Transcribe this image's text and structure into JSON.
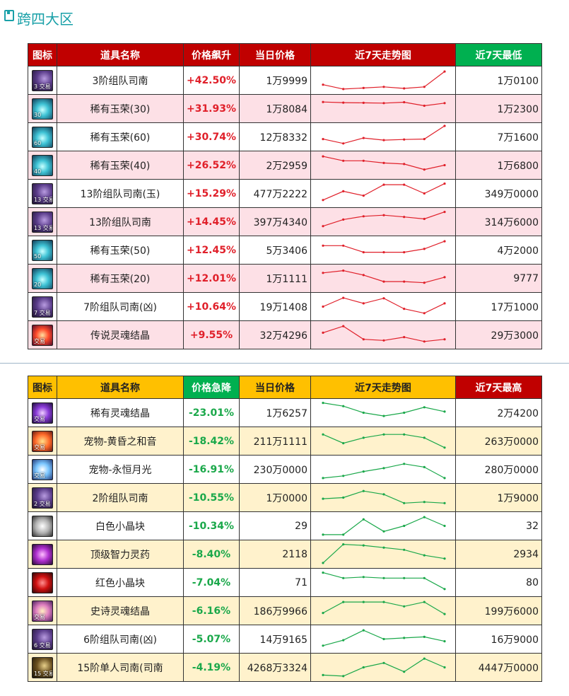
{
  "section": {
    "title": "跨四大区"
  },
  "rise_table": {
    "headers": [
      "图标",
      "道具名称",
      "价格飙升",
      "当日价格",
      "近7天走势图",
      "近7天最低"
    ],
    "trend_color": "#e0202a",
    "rows": [
      {
        "icon": "map-scroll-icon",
        "icon_class": "ic-map",
        "icon_tag": "3 交易",
        "name": "3阶组队司南",
        "change": "+42.50%",
        "price": "1万9999",
        "extreme": "1万0100",
        "trend": [
          3,
          1,
          1.5,
          2,
          1.3,
          2,
          9
        ]
      },
      {
        "icon": "jade-icon",
        "icon_class": "ic-jade",
        "icon_tag": "30",
        "name": "稀有玉荣(30)",
        "change": "+31.93%",
        "price": "1万8084",
        "extreme": "1万2300",
        "trend": [
          8,
          7.7,
          7.6,
          7.5,
          7.9,
          6.3,
          7.5
        ]
      },
      {
        "icon": "jade-icon",
        "icon_class": "ic-jade",
        "icon_tag": "60",
        "name": "稀有玉荣(60)",
        "change": "+30.74%",
        "price": "12万8332",
        "extreme": "7万1600",
        "trend": [
          4,
          2,
          4.5,
          3.5,
          3.8,
          4,
          10
        ]
      },
      {
        "icon": "jade-icon",
        "icon_class": "ic-jade",
        "icon_tag": "40",
        "name": "稀有玉荣(40)",
        "change": "+26.52%",
        "price": "2万2959",
        "extreme": "1万6800",
        "trend": [
          9,
          7,
          7,
          6,
          5.5,
          3,
          5
        ]
      },
      {
        "icon": "map-scroll-icon",
        "icon_class": "ic-map",
        "icon_tag": "13 交易",
        "name": "13阶组队司南(玉)",
        "change": "+15.29%",
        "price": "477万2222",
        "extreme": "349万0000",
        "trend": [
          2,
          6,
          4,
          9,
          9,
          5,
          9.5
        ]
      },
      {
        "icon": "map-scroll-icon",
        "icon_class": "ic-map",
        "icon_tag": "13 交易",
        "name": "13阶组队司南",
        "change": "+14.45%",
        "price": "397万4340",
        "extreme": "314万6000",
        "trend": [
          3,
          6,
          7.5,
          8,
          7.2,
          6.3,
          9.5
        ]
      },
      {
        "icon": "jade-icon",
        "icon_class": "ic-jade",
        "icon_tag": "50",
        "name": "稀有玉荣(50)",
        "change": "+12.45%",
        "price": "5万3406",
        "extreme": "4万2000",
        "trend": [
          7,
          7,
          4,
          4,
          4,
          5.5,
          9
        ]
      },
      {
        "icon": "jade-icon",
        "icon_class": "ic-jade",
        "icon_tag": "20",
        "name": "稀有玉荣(20)",
        "change": "+12.01%",
        "price": "1万1111",
        "extreme": "9777",
        "trend": [
          7.5,
          8.5,
          6.5,
          3.5,
          3.5,
          3,
          5.5
        ]
      },
      {
        "icon": "map-scroll-icon",
        "icon_class": "ic-map",
        "icon_tag": "7 交易",
        "name": "7阶组队司南(凶)",
        "change": "+10.64%",
        "price": "19万1408",
        "extreme": "17万1000",
        "trend": [
          5,
          9,
          6.5,
          8.8,
          4,
          2,
          6.5
        ]
      },
      {
        "icon": "soul-crystal-icon",
        "icon_class": "ic-soul-red",
        "icon_tag": "交易",
        "name": "传说灵魂结晶",
        "change": "+9.55%",
        "price": "32万4296",
        "extreme": "29万3000",
        "trend": [
          6,
          9,
          3,
          2.5,
          4,
          2,
          3
        ]
      }
    ]
  },
  "fall_table": {
    "headers": [
      "图标",
      "道具名称",
      "价格急降",
      "当日价格",
      "近7天走势图",
      "近7天最高"
    ],
    "trend_color": "#1aa84a",
    "rows": [
      {
        "icon": "soul-crystal-icon",
        "icon_class": "ic-soul-purple",
        "icon_tag": "交易",
        "name": "稀有灵魂结晶",
        "change": "-23.01%",
        "price": "1万6257",
        "extreme": "2万4200",
        "trend": [
          9.5,
          8,
          5,
          3.5,
          5,
          7.5,
          5.5
        ]
      },
      {
        "icon": "pet-sunset-icon",
        "icon_class": "ic-sunset",
        "icon_tag": "交易",
        "name": "宠物-黄昏之和音",
        "change": "-18.42%",
        "price": "211万1111",
        "extreme": "263万0000",
        "trend": [
          8,
          4,
          6.5,
          8,
          8,
          6.5,
          2
        ]
      },
      {
        "icon": "pet-moon-icon",
        "icon_class": "ic-moon",
        "icon_tag": "交易",
        "name": "宠物-永恒月光",
        "change": "-16.91%",
        "price": "230万0000",
        "extreme": "280万0000",
        "trend": [
          1,
          2,
          4,
          5.5,
          7.5,
          6,
          1
        ]
      },
      {
        "icon": "map-scroll-icon",
        "icon_class": "ic-map",
        "icon_tag": "2 交易",
        "name": "2阶组队司南",
        "change": "-10.55%",
        "price": "1万0000",
        "extreme": "1万9000",
        "trend": [
          4.5,
          5,
          8,
          6.5,
          2.5,
          3,
          2.5
        ]
      },
      {
        "icon": "white-crystal-icon",
        "icon_class": "ic-white",
        "icon_tag": "",
        "name": "白色小晶块",
        "change": "-10.34%",
        "price": "29",
        "extreme": "32",
        "trend": [
          1,
          1,
          8,
          2.5,
          5,
          9,
          5
        ]
      },
      {
        "icon": "potion-icon",
        "icon_class": "ic-potion",
        "icon_tag": "",
        "name": "顶级智力灵药",
        "change": "-8.40%",
        "price": "2118",
        "extreme": "2934",
        "trend": [
          1,
          9.5,
          9,
          8,
          7,
          4.5,
          3
        ]
      },
      {
        "icon": "red-crystal-icon",
        "icon_class": "ic-red",
        "icon_tag": "",
        "name": "红色小晶块",
        "change": "-7.04%",
        "price": "71",
        "extreme": "80",
        "trend": [
          9.5,
          7,
          7.5,
          7,
          7,
          7,
          2
        ]
      },
      {
        "icon": "soul-crystal-icon",
        "icon_class": "ic-epic",
        "icon_tag": "交易",
        "name": "史诗灵魂结晶",
        "change": "-6.16%",
        "price": "186万9966",
        "extreme": "199万6000",
        "trend": [
          4,
          9,
          9,
          9,
          7,
          9,
          3.5
        ]
      },
      {
        "icon": "map-scroll-icon",
        "icon_class": "ic-map",
        "icon_tag": "6 交易",
        "name": "6阶组队司南(凶)",
        "change": "-5.07%",
        "price": "14万9165",
        "extreme": "16万9000",
        "trend": [
          2,
          4.5,
          9,
          5,
          5.5,
          6,
          4
        ]
      },
      {
        "icon": "map-scroll-icon",
        "icon_class": "ic-map15",
        "icon_tag": "15 交易",
        "name": "15阶单人司南(司南",
        "change": "-4.19%",
        "price": "4268万3324",
        "extreme": "4447万0000",
        "trend": [
          1.5,
          1,
          5,
          7,
          3,
          9,
          5
        ]
      }
    ]
  }
}
